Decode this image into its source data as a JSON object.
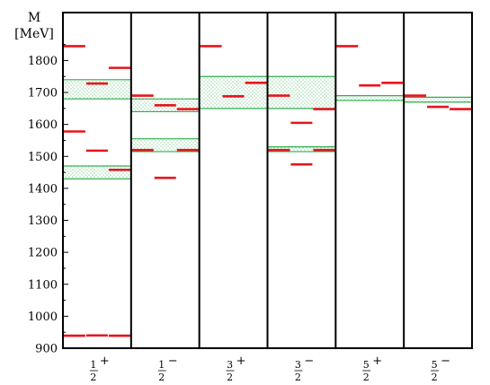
{
  "chart_data": {
    "type": "level-spectrum",
    "ylabel": {
      "line1": "M",
      "line2": "[MeV]"
    },
    "ylim": [
      900,
      1950
    ],
    "yticks": [
      900,
      1000,
      1100,
      1200,
      1300,
      1400,
      1500,
      1600,
      1700,
      1800
    ],
    "categories": [
      {
        "num": "1",
        "den": "2",
        "parity": "+"
      },
      {
        "num": "1",
        "den": "2",
        "parity": "−"
      },
      {
        "num": "3",
        "den": "2",
        "parity": "+"
      },
      {
        "num": "3",
        "den": "2",
        "parity": "−"
      },
      {
        "num": "5",
        "den": "2",
        "parity": "+"
      },
      {
        "num": "5",
        "den": "2",
        "parity": "−"
      }
    ],
    "colors": {
      "level": "#e8141c",
      "band": "#2fae4e",
      "frame": "#000000"
    },
    "bands": [
      [
        [
          1680,
          1740
        ],
        [
          1430,
          1470
        ]
      ],
      [
        [
          1640,
          1680
        ],
        [
          1515,
          1555
        ]
      ],
      [
        [
          1650,
          1750
        ]
      ],
      [
        [
          1650,
          1750
        ],
        [
          1515,
          1530
        ]
      ],
      [
        [
          1675,
          1690
        ]
      ],
      [
        [
          1670,
          1685
        ]
      ]
    ],
    "levels": [
      [
        [
          1,
          1845
        ],
        [
          1,
          1578
        ],
        [
          1,
          939
        ],
        [
          2,
          1728
        ],
        [
          2,
          1518
        ],
        [
          2,
          940
        ],
        [
          3,
          1777
        ],
        [
          3,
          1458
        ],
        [
          3,
          939
        ]
      ],
      [
        [
          1,
          1690
        ],
        [
          1,
          1520
        ],
        [
          2,
          1660
        ],
        [
          2,
          1433
        ],
        [
          3,
          1648
        ],
        [
          3,
          1520
        ]
      ],
      [
        [
          1,
          1845
        ],
        [
          2,
          1688
        ],
        [
          3,
          1730
        ]
      ],
      [
        [
          1,
          1690
        ],
        [
          1,
          1520
        ],
        [
          2,
          1605
        ],
        [
          2,
          1475
        ],
        [
          3,
          1648
        ],
        [
          3,
          1520
        ]
      ],
      [
        [
          1,
          1845
        ],
        [
          2,
          1722
        ],
        [
          3,
          1730
        ]
      ],
      [
        [
          1,
          1690
        ],
        [
          2,
          1655
        ],
        [
          3,
          1648
        ]
      ]
    ]
  }
}
